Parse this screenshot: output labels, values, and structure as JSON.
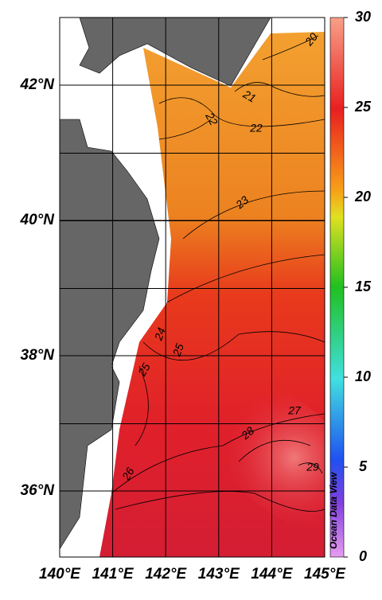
{
  "map": {
    "x_labels": [
      "140°E",
      "141°E",
      "142°E",
      "143°E",
      "144°E",
      "145°E"
    ],
    "y_labels": [
      "42°N",
      "40°N",
      "38°N",
      "36°N"
    ],
    "contour_labels": [
      20,
      21,
      22,
      22,
      23,
      24,
      25,
      25,
      26,
      27,
      28,
      29
    ],
    "colorbar": {
      "lim": [
        0,
        30
      ],
      "ticks": [
        0,
        5,
        10,
        15,
        20,
        25,
        30
      ]
    },
    "watermark": "Ocean Data View"
  }
}
